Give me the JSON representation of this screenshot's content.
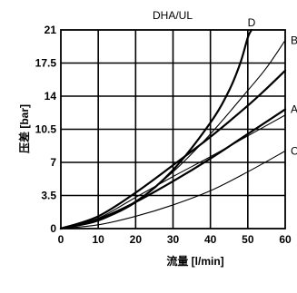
{
  "chart_data": {
    "type": "line",
    "title": "DHA/UL",
    "xlabel": "流量 [l/min]",
    "ylabel": "压差 [bar]",
    "xlim": [
      0,
      60
    ],
    "ylim": [
      0,
      21
    ],
    "x_ticks": [
      "0",
      "10",
      "20",
      "30",
      "40",
      "50",
      "60"
    ],
    "y_ticks": [
      "0",
      "3.5",
      "7",
      "10.5",
      "14",
      "17.5",
      "21"
    ],
    "grid": true,
    "series": [
      {
        "name": "D",
        "weight": "bold",
        "points": [
          [
            0,
            0
          ],
          [
            10,
            0.9
          ],
          [
            20,
            2.8
          ],
          [
            30,
            6.2
          ],
          [
            40,
            11.2
          ],
          [
            45,
            14.6
          ],
          [
            48,
            17.5
          ],
          [
            50,
            20.2
          ],
          [
            51,
            21
          ]
        ]
      },
      {
        "name": "B",
        "weight": "thin",
        "points": [
          [
            0,
            0
          ],
          [
            10,
            0.8
          ],
          [
            20,
            2.9
          ],
          [
            30,
            6.0
          ],
          [
            40,
            10.0
          ],
          [
            50,
            14.6
          ],
          [
            55,
            17.0
          ],
          [
            60,
            19.9
          ]
        ]
      },
      {
        "name": "",
        "weight": "bold",
        "points": [
          [
            0,
            0
          ],
          [
            10,
            1.3
          ],
          [
            20,
            3.8
          ],
          [
            30,
            6.7
          ],
          [
            40,
            9.7
          ],
          [
            50,
            13.0
          ],
          [
            55,
            14.8
          ],
          [
            60,
            16.7
          ]
        ]
      },
      {
        "name": "A",
        "weight": "bold",
        "points": [
          [
            0,
            0
          ],
          [
            10,
            1.0
          ],
          [
            20,
            2.8
          ],
          [
            30,
            5.0
          ],
          [
            40,
            7.4
          ],
          [
            50,
            10.0
          ],
          [
            60,
            12.6
          ]
        ]
      },
      {
        "name": "",
        "weight": "thin",
        "points": [
          [
            0,
            0
          ],
          [
            10,
            1.1
          ],
          [
            20,
            3.3
          ],
          [
            30,
            5.5
          ],
          [
            40,
            7.6
          ],
          [
            50,
            9.8
          ],
          [
            60,
            12.0
          ]
        ]
      },
      {
        "name": "C",
        "weight": "thin",
        "points": [
          [
            0,
            0
          ],
          [
            10,
            0.4
          ],
          [
            20,
            1.3
          ],
          [
            30,
            2.5
          ],
          [
            40,
            4.0
          ],
          [
            50,
            6.0
          ],
          [
            60,
            8.2
          ]
        ]
      }
    ]
  }
}
